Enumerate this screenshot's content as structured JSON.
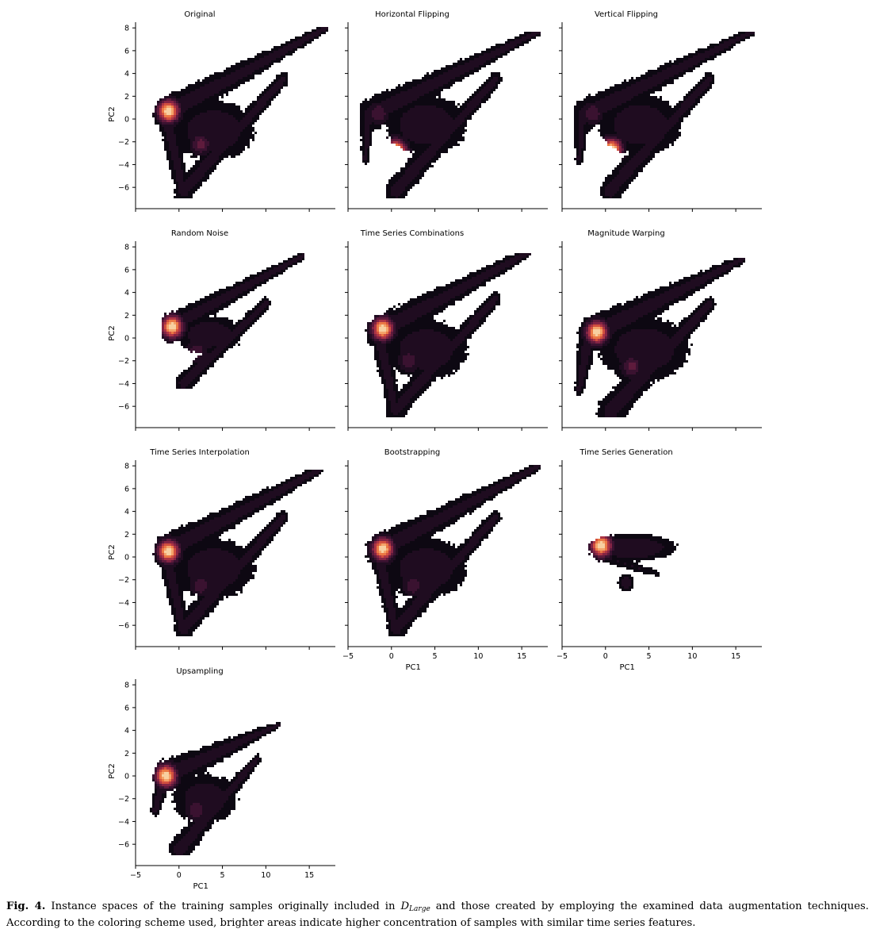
{
  "figure": {
    "caption": {
      "label": "Fig. 4.",
      "text_before": "Instance spaces of the training samples originally included in",
      "dataset_symbol": "D",
      "dataset_subscript": "Large",
      "text_after": "and those created by employing the examined data augmentation techniques. According to the coloring scheme used, brighter areas indicate higher concentration of samples with similar time series features."
    },
    "colormap": [
      "#0d0812",
      "#1f0c20",
      "#3a1230",
      "#5e1b3c",
      "#842444",
      "#ad3545",
      "#d2503f",
      "#eb7845",
      "#f4a36a",
      "#f8cfa0"
    ]
  },
  "chart_data": [
    {
      "type": "heatmap",
      "title": "Original",
      "shape": "original",
      "xlim": [
        -5,
        18
      ],
      "ylim": [
        -7.8,
        8.5
      ],
      "xlabel": "",
      "ylabel": "PC2",
      "yticks": [
        -6,
        -4,
        -2,
        0,
        2,
        4,
        6,
        8
      ],
      "xticks": [],
      "hotspots": [
        {
          "x": -1.2,
          "y": 0.7,
          "w": 1.0
        },
        {
          "x": 2.5,
          "y": -2.2,
          "w": 0.35
        }
      ],
      "extent": {
        "xmin": -3.5,
        "xmax": 17.2,
        "ymin": -6.9,
        "ymax": 8.0
      }
    },
    {
      "type": "heatmap",
      "title": "Horizontal Flipping",
      "shape": "hflip",
      "xlim": [
        -5,
        18
      ],
      "ylim": [
        -7.8,
        8.5
      ],
      "xlabel": "",
      "ylabel": "",
      "yticks": [],
      "xticks": [],
      "hotspots": [
        {
          "x": 0.5,
          "y": -2.8,
          "w": 1.0
        },
        {
          "x": -1.5,
          "y": 0.5,
          "w": 0.3
        }
      ],
      "extent": {
        "xmin": -3.5,
        "xmax": 17.2,
        "ymin": -6.9,
        "ymax": 7.7
      }
    },
    {
      "type": "heatmap",
      "title": "Vertical Flipping",
      "shape": "vflip",
      "xlim": [
        -5,
        18
      ],
      "ylim": [
        -7.8,
        8.5
      ],
      "xlabel": "",
      "ylabel": "",
      "yticks": [],
      "xticks": [],
      "hotspots": [
        {
          "x": 0.7,
          "y": -2.7,
          "w": 1.0
        },
        {
          "x": -1.5,
          "y": 0.5,
          "w": 0.3
        }
      ],
      "extent": {
        "xmin": -3.5,
        "xmax": 17.2,
        "ymin": -6.9,
        "ymax": 7.6
      }
    },
    {
      "type": "heatmap",
      "title": "Random Noise",
      "shape": "noise",
      "xlim": [
        -5,
        18
      ],
      "ylim": [
        -7.8,
        8.5
      ],
      "xlabel": "",
      "ylabel": "PC2",
      "yticks": [
        -6,
        -4,
        -2,
        0,
        2,
        4,
        6,
        8
      ],
      "xticks": [],
      "hotspots": [
        {
          "x": -0.8,
          "y": 1.0,
          "w": 1.0
        },
        {
          "x": 2.0,
          "y": -1.2,
          "w": 0.3
        }
      ],
      "extent": {
        "xmin": -2.0,
        "xmax": 14.5,
        "ymin": -4.5,
        "ymax": 7.4
      }
    },
    {
      "type": "heatmap",
      "title": "Time Series Combinations",
      "shape": "combo",
      "xlim": [
        -5,
        18
      ],
      "ylim": [
        -7.8,
        8.5
      ],
      "xlabel": "",
      "ylabel": "",
      "yticks": [],
      "xticks": [],
      "hotspots": [
        {
          "x": -1.0,
          "y": 0.8,
          "w": 1.0
        },
        {
          "x": 2.0,
          "y": -2.0,
          "w": 0.3
        }
      ],
      "extent": {
        "xmin": -3.3,
        "xmax": 16.0,
        "ymin": -6.9,
        "ymax": 7.4
      }
    },
    {
      "type": "heatmap",
      "title": "Magnitude Warping",
      "shape": "magwarp",
      "xlim": [
        -5,
        18
      ],
      "ylim": [
        -7.8,
        8.5
      ],
      "xlabel": "",
      "ylabel": "",
      "yticks": [],
      "xticks": [],
      "hotspots": [
        {
          "x": -1.0,
          "y": 0.5,
          "w": 1.0
        },
        {
          "x": 3.0,
          "y": -2.5,
          "w": 0.35
        }
      ],
      "extent": {
        "xmin": -3.5,
        "xmax": 16.0,
        "ymin": -6.9,
        "ymax": 7.1
      }
    },
    {
      "type": "heatmap",
      "title": "Time Series Interpolation",
      "shape": "interp",
      "xlim": [
        -5,
        18
      ],
      "ylim": [
        -7.8,
        8.5
      ],
      "xlabel": "",
      "ylabel": "PC2",
      "yticks": [
        -6,
        -4,
        -2,
        0,
        2,
        4,
        6,
        8
      ],
      "xticks": [],
      "hotspots": [
        {
          "x": -1.2,
          "y": 0.5,
          "w": 1.0
        },
        {
          "x": 2.5,
          "y": -2.5,
          "w": 0.3
        }
      ],
      "extent": {
        "xmin": -3.5,
        "xmax": 16.5,
        "ymin": -6.9,
        "ymax": 7.6
      }
    },
    {
      "type": "heatmap",
      "title": "Bootstrapping",
      "shape": "boot",
      "xlim": [
        -5,
        18
      ],
      "ylim": [
        -7.8,
        8.5
      ],
      "xlabel": "PC1",
      "ylabel": "",
      "yticks": [],
      "xticks": [
        -5,
        0,
        5,
        10,
        15
      ],
      "hotspots": [
        {
          "x": -1.0,
          "y": 0.7,
          "w": 1.0
        },
        {
          "x": 2.5,
          "y": -2.5,
          "w": 0.3
        }
      ],
      "extent": {
        "xmin": -3.5,
        "xmax": 17.2,
        "ymin": -6.9,
        "ymax": 8.0
      }
    },
    {
      "type": "heatmap",
      "title": "Time Series Generation",
      "shape": "gen",
      "xlim": [
        -5,
        18
      ],
      "ylim": [
        -7.8,
        8.5
      ],
      "xlabel": "PC1",
      "ylabel": "",
      "yticks": [],
      "xticks": [
        -5,
        0,
        5,
        10,
        15
      ],
      "hotspots": [
        {
          "x": -0.5,
          "y": 1.0,
          "w": 1.0
        }
      ],
      "extent": {
        "xmin": -2.0,
        "xmax": 8.5,
        "ymin": -3.5,
        "ymax": 2.3
      }
    },
    {
      "type": "heatmap",
      "title": "Upsampling",
      "shape": "up",
      "xlim": [
        -5,
        18
      ],
      "ylim": [
        -7.8,
        8.5
      ],
      "xlabel": "PC1",
      "ylabel": "PC2",
      "yticks": [
        -6,
        -4,
        -2,
        0,
        2,
        4,
        6,
        8
      ],
      "xticks": [
        -5,
        0,
        5,
        10,
        15
      ],
      "hotspots": [
        {
          "x": -1.5,
          "y": 0.0,
          "w": 1.0
        },
        {
          "x": 2.0,
          "y": -3.0,
          "w": 0.3
        }
      ],
      "extent": {
        "xmin": -3.5,
        "xmax": 11.8,
        "ymin": -6.9,
        "ymax": 4.7
      }
    }
  ]
}
